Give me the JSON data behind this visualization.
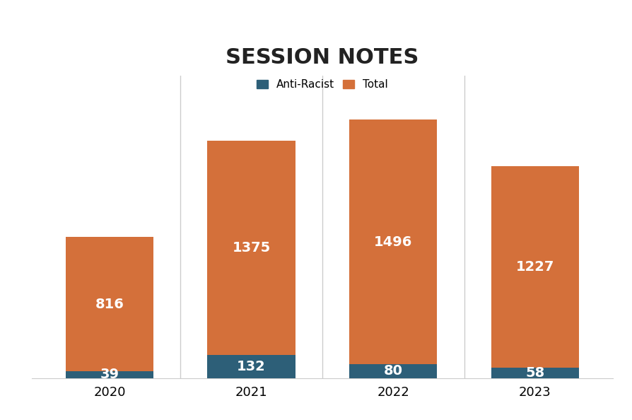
{
  "years": [
    "2020",
    "2021",
    "2022",
    "2023"
  ],
  "total_values": [
    816,
    1375,
    1496,
    1227
  ],
  "anti_racist_values": [
    39,
    132,
    80,
    58
  ],
  "total_color": "#D4703A",
  "anti_racist_color": "#2D5F78",
  "title": "SESSION NOTES",
  "title_fontsize": 22,
  "title_fontweight": "bold",
  "bar_width": 0.62,
  "background_color": "#FFFFFF",
  "label_color": "#FFFFFF",
  "label_fontsize": 14,
  "legend_fontsize": 11,
  "tick_fontsize": 13,
  "ylim": [
    0,
    1750
  ],
  "grid_color": "#CCCCCC",
  "legend_labels": [
    "Anti-Racist",
    "Total"
  ],
  "title_color": "#222222"
}
